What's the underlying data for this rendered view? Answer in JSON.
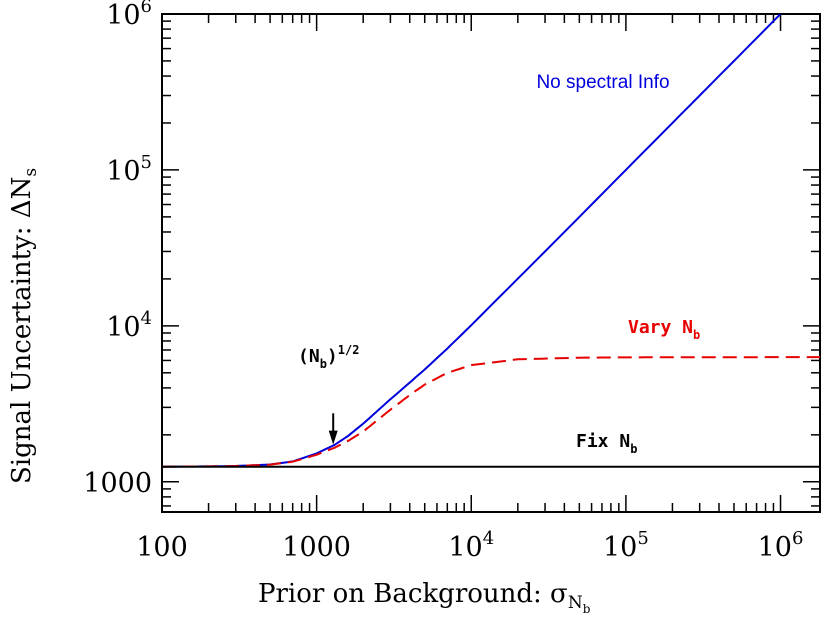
{
  "chart_data": {
    "type": "line",
    "x_scale": "log",
    "y_scale": "log",
    "xlim": [
      100,
      1800000
    ],
    "ylim": [
      640,
      1000000
    ],
    "x_ticks": [
      {
        "value": 100,
        "base": "100",
        "exp": ""
      },
      {
        "value": 1000,
        "base": "1000",
        "exp": ""
      },
      {
        "value": 10000,
        "base": "10",
        "exp": "4"
      },
      {
        "value": 100000,
        "base": "10",
        "exp": "5"
      },
      {
        "value": 1000000,
        "base": "10",
        "exp": "6"
      }
    ],
    "y_ticks": [
      {
        "value": 1000,
        "base": "1000",
        "exp": ""
      },
      {
        "value": 10000,
        "base": "10",
        "exp": "4"
      },
      {
        "value": 100000,
        "base": "10",
        "exp": "5"
      },
      {
        "value": 1000000,
        "base": "10",
        "exp": "6"
      }
    ],
    "xlabel": {
      "main": "Prior on Background: σ",
      "sub": "N",
      "subsub": "b"
    },
    "ylabel": {
      "main": "Signal Uncertainty: ΔN",
      "sub": "s"
    },
    "grid": false,
    "series": [
      {
        "name": "No spectral Info",
        "color": "#0000dd",
        "dash": "solid",
        "x": [
          100,
          200,
          300,
          500,
          700,
          1000,
          1300,
          1600,
          2000,
          3000,
          5000,
          7000,
          10000,
          30000,
          100000,
          300000,
          1000000
        ],
        "y": [
          1250,
          1255,
          1262,
          1290,
          1350,
          1520,
          1720,
          1970,
          2360,
          3380,
          5250,
          7150,
          10100,
          30000,
          100000,
          300000,
          1000000
        ]
      },
      {
        "name": "Vary N",
        "color": "#e80000",
        "dash": "dashed",
        "x": [
          100,
          200,
          300,
          500,
          700,
          1000,
          1300,
          1600,
          2000,
          3000,
          4000,
          5000,
          7000,
          10000,
          20000,
          50000,
          100000,
          1000000,
          1800000
        ],
        "y": [
          1250,
          1255,
          1262,
          1288,
          1345,
          1490,
          1650,
          1830,
          2100,
          2900,
          3600,
          4200,
          5000,
          5600,
          6100,
          6250,
          6280,
          6300,
          6300
        ]
      },
      {
        "name": "Fix N",
        "color": "#000000",
        "dash": "solid",
        "x": [
          100,
          1800000
        ],
        "y": [
          1250,
          1250
        ]
      }
    ],
    "annotations": [
      {
        "id": "nb-half",
        "text_main": "(N",
        "text_sub": "b",
        "text_close": ")",
        "text_sup": "1/2",
        "arrow_x": 1280,
        "arrow_y_from": 2750,
        "arrow_y_to": 1730
      },
      {
        "id": "no-spectral",
        "text": "No spectral Info"
      },
      {
        "id": "vary",
        "text": "Vary N",
        "sub": "b"
      },
      {
        "id": "fix",
        "text": "Fix N",
        "sub": "b"
      }
    ]
  }
}
